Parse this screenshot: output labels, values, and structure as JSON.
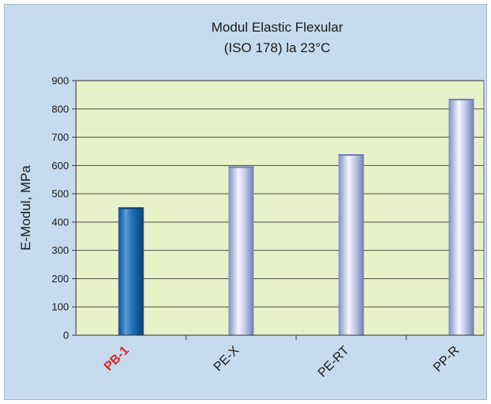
{
  "chart_data": {
    "type": "bar",
    "title": "Modul Elastic Flexular",
    "subtitle": "(ISO 178) la 23°C",
    "xlabel": "",
    "ylabel": "E-Modul, MPa",
    "ylim": [
      0,
      900
    ],
    "yticks": [
      0,
      100,
      200,
      300,
      400,
      500,
      600,
      700,
      800,
      900
    ],
    "categories": [
      "PB-1",
      "PE-X",
      "PE-RT",
      "PP-R"
    ],
    "values": [
      452,
      597,
      640,
      836
    ],
    "highlight_category": "PB-1",
    "grid": true,
    "legend": "none"
  },
  "colors": {
    "frame_background": "#c6dbee",
    "plot_background": "#e8f2c8",
    "highlight_label": "#e2232a",
    "highlight_bar": "#1a63a8",
    "bar": "#a9b6dd"
  }
}
